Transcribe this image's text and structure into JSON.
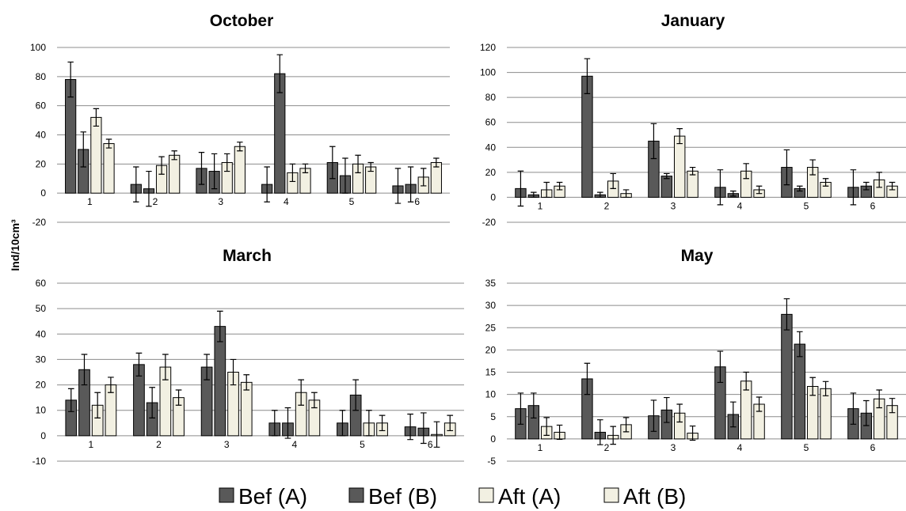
{
  "figure": {
    "ylabel": "Ind/10cm³"
  },
  "legend": [
    {
      "label": "Bef (A)",
      "color": "#595959"
    },
    {
      "label": "Bef (B)",
      "color": "#595959"
    },
    {
      "label": "Aft (A)",
      "color": "#f2f0e2"
    },
    {
      "label": "Aft (B)",
      "color": "#f2f0e2"
    }
  ],
  "chart_data": [
    {
      "type": "bar",
      "title": "October",
      "categories": [
        "1",
        "2",
        "3",
        "4",
        "5",
        "6"
      ],
      "ylim": [
        -20,
        100
      ],
      "yticks": [
        -20,
        0,
        20,
        40,
        60,
        80,
        100
      ],
      "grid": true,
      "series": [
        {
          "name": "Bef (A)",
          "values": [
            78,
            6,
            17,
            6,
            21,
            5
          ],
          "errors": [
            12,
            12,
            11,
            12,
            11,
            12
          ]
        },
        {
          "name": "Bef (B)",
          "values": [
            30,
            3,
            15,
            82,
            12,
            6
          ],
          "errors": [
            12,
            12,
            12,
            13,
            12,
            12
          ]
        },
        {
          "name": "Aft (A)",
          "values": [
            52,
            19,
            21,
            14,
            20,
            11
          ],
          "errors": [
            6,
            6,
            6,
            6,
            6,
            6
          ]
        },
        {
          "name": "Aft (B)",
          "values": [
            34,
            26,
            32,
            17,
            18,
            21
          ],
          "errors": [
            3,
            3,
            3,
            3,
            3,
            3
          ]
        }
      ]
    },
    {
      "type": "bar",
      "title": "January",
      "categories": [
        "1",
        "2",
        "3",
        "4",
        "5",
        "6"
      ],
      "ylim": [
        -20,
        120
      ],
      "yticks": [
        -20,
        0,
        20,
        40,
        60,
        80,
        100,
        120
      ],
      "grid": true,
      "series": [
        {
          "name": "Bef (A)",
          "values": [
            7,
            97,
            45,
            8,
            24,
            8
          ],
          "errors": [
            14,
            14,
            14,
            14,
            14,
            14
          ]
        },
        {
          "name": "Bef (B)",
          "values": [
            2,
            2,
            17,
            3,
            7,
            9
          ],
          "errors": [
            2,
            2,
            2,
            2,
            2,
            3
          ]
        },
        {
          "name": "Aft (A)",
          "values": [
            6,
            13,
            49,
            21,
            24,
            14
          ],
          "errors": [
            6,
            6,
            6,
            6,
            6,
            6
          ]
        },
        {
          "name": "Aft (B)",
          "values": [
            9,
            3,
            21,
            6,
            12,
            9
          ],
          "errors": [
            3,
            3,
            3,
            3,
            3,
            3
          ]
        }
      ]
    },
    {
      "type": "bar",
      "title": "March",
      "categories": [
        "1",
        "2",
        "3",
        "4",
        "5",
        "6"
      ],
      "ylim": [
        -10,
        60
      ],
      "yticks": [
        -10,
        0,
        10,
        20,
        30,
        40,
        50,
        60
      ],
      "grid": true,
      "series": [
        {
          "name": "Bef (A)",
          "values": [
            14,
            28,
            27,
            5,
            5,
            3.5
          ],
          "errors": [
            4.5,
            4.5,
            5,
            5,
            5,
            5
          ]
        },
        {
          "name": "Bef (B)",
          "values": [
            26,
            13,
            43,
            5,
            16,
            3
          ],
          "errors": [
            6,
            6,
            6,
            6,
            6,
            6
          ]
        },
        {
          "name": "Aft (A)",
          "values": [
            12,
            27,
            25,
            17,
            5,
            0.5
          ],
          "errors": [
            5,
            5,
            5,
            5,
            5,
            5
          ]
        },
        {
          "name": "Aft (B)",
          "values": [
            20,
            15,
            21,
            14,
            5,
            5
          ],
          "errors": [
            3,
            3,
            3,
            3,
            3,
            3
          ]
        }
      ]
    },
    {
      "type": "bar",
      "title": "May",
      "categories": [
        "1",
        "2",
        "3",
        "4",
        "5",
        "6"
      ],
      "ylim": [
        -5,
        35
      ],
      "yticks": [
        -5,
        0,
        5,
        10,
        15,
        20,
        25,
        30,
        35
      ],
      "grid": true,
      "series": [
        {
          "name": "Bef (A)",
          "values": [
            6.8,
            13.5,
            5.2,
            16.2,
            28,
            6.8
          ],
          "errors": [
            3.5,
            3.5,
            3.5,
            3.5,
            3.5,
            3.5
          ]
        },
        {
          "name": "Bef (B)",
          "values": [
            7.5,
            1.5,
            6.5,
            5.5,
            21.3,
            5.8
          ],
          "errors": [
            2.8,
            2.8,
            2.8,
            2.8,
            2.8,
            2.8
          ]
        },
        {
          "name": "Aft (A)",
          "values": [
            2.8,
            0.8,
            5.8,
            13,
            11.8,
            9
          ],
          "errors": [
            2,
            2,
            2,
            2,
            2,
            2
          ]
        },
        {
          "name": "Aft (B)",
          "values": [
            1.5,
            3.2,
            1.3,
            7.8,
            11.3,
            7.5
          ],
          "errors": [
            1.6,
            1.6,
            1.6,
            1.6,
            1.6,
            1.6
          ]
        }
      ]
    }
  ]
}
